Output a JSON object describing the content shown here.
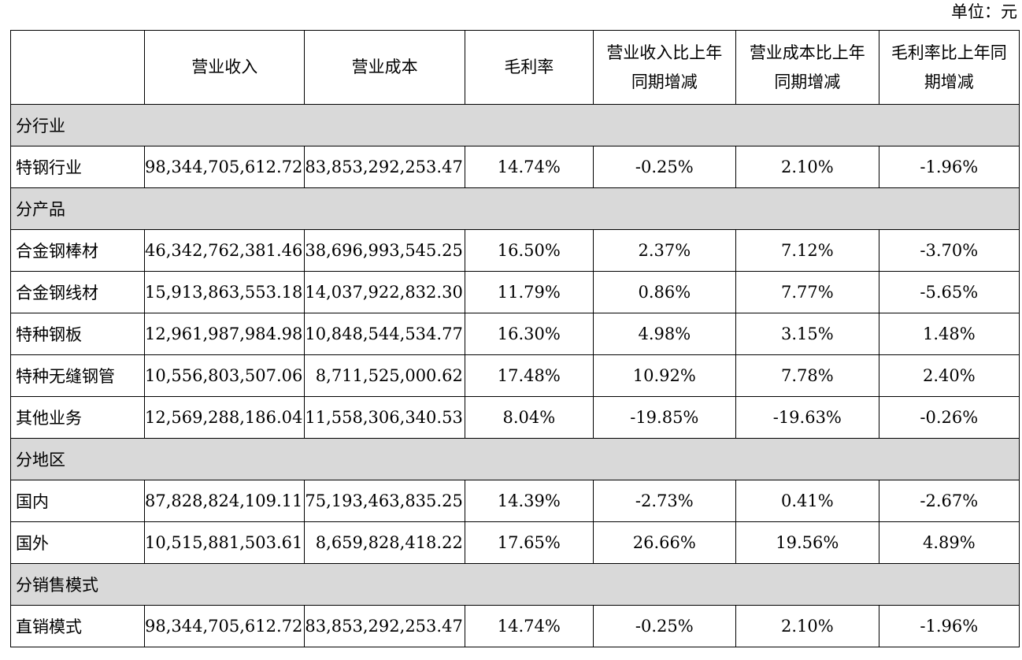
{
  "unit_label": "单位：元",
  "headers": {
    "blank": "",
    "revenue": "营业收入",
    "cost": "营业成本",
    "margin": "毛利率",
    "revenue_yoy_line1": "营业收入比上年",
    "revenue_yoy_line2": "同期增减",
    "cost_yoy_line1": "营业成本比上年",
    "cost_yoy_line2": "同期增减",
    "margin_yoy_line1": "毛利率比上年同",
    "margin_yoy_line2": "期增减"
  },
  "sections": [
    {
      "title": "分行业",
      "rows": [
        {
          "name": "特钢行业",
          "revenue": "98,344,705,612.72",
          "cost": "83,853,292,253.47",
          "margin": "14.74%",
          "revenue_yoy": "-0.25%",
          "cost_yoy": "2.10%",
          "margin_yoy": "-1.96%"
        }
      ]
    },
    {
      "title": "分产品",
      "rows": [
        {
          "name": "合金钢棒材",
          "revenue": "46,342,762,381.46",
          "cost": "38,696,993,545.25",
          "margin": "16.50%",
          "revenue_yoy": "2.37%",
          "cost_yoy": "7.12%",
          "margin_yoy": "-3.70%"
        },
        {
          "name": "合金钢线材",
          "revenue": "15,913,863,553.18",
          "cost": "14,037,922,832.30",
          "margin": "11.79%",
          "revenue_yoy": "0.86%",
          "cost_yoy": "7.77%",
          "margin_yoy": "-5.65%"
        },
        {
          "name": "特种钢板",
          "revenue": "12,961,987,984.98",
          "cost": "10,848,544,534.77",
          "margin": "16.30%",
          "revenue_yoy": "4.98%",
          "cost_yoy": "3.15%",
          "margin_yoy": "1.48%"
        },
        {
          "name": "特种无缝钢管",
          "revenue": "10,556,803,507.06",
          "cost": "8,711,525,000.62",
          "margin": "17.48%",
          "revenue_yoy": "10.92%",
          "cost_yoy": "7.78%",
          "margin_yoy": "2.40%"
        },
        {
          "name": "其他业务",
          "revenue": "12,569,288,186.04",
          "cost": "11,558,306,340.53",
          "margin": "8.04%",
          "revenue_yoy": "-19.85%",
          "cost_yoy": "-19.63%",
          "margin_yoy": "-0.26%"
        }
      ]
    },
    {
      "title": "分地区",
      "rows": [
        {
          "name": "国内",
          "revenue": "87,828,824,109.11",
          "cost": "75,193,463,835.25",
          "margin": "14.39%",
          "revenue_yoy": "-2.73%",
          "cost_yoy": "0.41%",
          "margin_yoy": "-2.67%"
        },
        {
          "name": "国外",
          "revenue": "10,515,881,503.61",
          "cost": "8,659,828,418.22",
          "margin": "17.65%",
          "revenue_yoy": "26.66%",
          "cost_yoy": "19.56%",
          "margin_yoy": "4.89%"
        }
      ]
    },
    {
      "title": "分销售模式",
      "rows": [
        {
          "name": "直销模式",
          "revenue": "98,344,705,612.72",
          "cost": "83,853,292,253.47",
          "margin": "14.74%",
          "revenue_yoy": "-0.25%",
          "cost_yoy": "2.10%",
          "margin_yoy": "-1.96%"
        }
      ]
    }
  ]
}
